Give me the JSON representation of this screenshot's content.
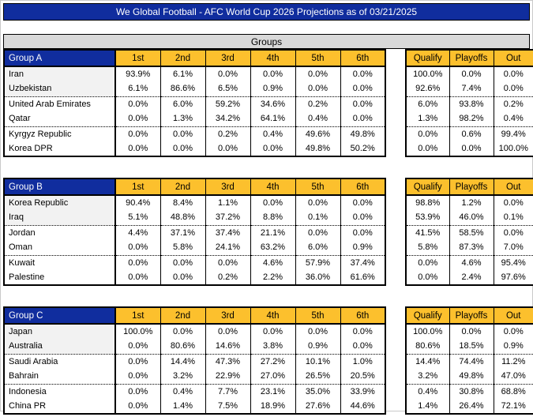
{
  "colors": {
    "header_blue": "#102D9E",
    "header_orange": "#FCC02D",
    "band_gray": "#D9D9D9",
    "qualified_row_tint": "#F2F2F2",
    "title_text": "#FFFFFF"
  },
  "title": "We Global Football - AFC World Cup 2026 Projections as of 03/21/2025",
  "groups_band_label": "Groups",
  "position_headers": [
    "1st",
    "2nd",
    "3rd",
    "4th",
    "5th",
    "6th"
  ],
  "outcome_headers": [
    "Qualify",
    "Playoffs",
    "Out"
  ],
  "groups": [
    {
      "label": "Group A",
      "teams": [
        {
          "name": "Iran",
          "pos": [
            "93.9%",
            "6.1%",
            "0.0%",
            "0.0%",
            "0.0%",
            "0.0%"
          ],
          "outcomes": [
            "100.0%",
            "0.0%",
            "0.0%"
          ]
        },
        {
          "name": "Uzbekistan",
          "pos": [
            "6.1%",
            "86.6%",
            "6.5%",
            "0.9%",
            "0.0%",
            "0.0%"
          ],
          "outcomes": [
            "92.6%",
            "7.4%",
            "0.0%"
          ]
        },
        {
          "name": "United Arab Emirates",
          "pos": [
            "0.0%",
            "6.0%",
            "59.2%",
            "34.6%",
            "0.2%",
            "0.0%"
          ],
          "outcomes": [
            "6.0%",
            "93.8%",
            "0.2%"
          ]
        },
        {
          "name": "Qatar",
          "pos": [
            "0.0%",
            "1.3%",
            "34.2%",
            "64.1%",
            "0.4%",
            "0.0%"
          ],
          "outcomes": [
            "1.3%",
            "98.2%",
            "0.4%"
          ]
        },
        {
          "name": "Kyrgyz Republic",
          "pos": [
            "0.0%",
            "0.0%",
            "0.2%",
            "0.4%",
            "49.6%",
            "49.8%"
          ],
          "outcomes": [
            "0.0%",
            "0.6%",
            "99.4%"
          ]
        },
        {
          "name": "Korea DPR",
          "pos": [
            "0.0%",
            "0.0%",
            "0.0%",
            "0.0%",
            "49.8%",
            "50.2%"
          ],
          "outcomes": [
            "0.0%",
            "0.0%",
            "100.0%"
          ]
        }
      ]
    },
    {
      "label": "Group B",
      "teams": [
        {
          "name": "Korea Republic",
          "pos": [
            "90.4%",
            "8.4%",
            "1.1%",
            "0.0%",
            "0.0%",
            "0.0%"
          ],
          "outcomes": [
            "98.8%",
            "1.2%",
            "0.0%"
          ]
        },
        {
          "name": "Iraq",
          "pos": [
            "5.1%",
            "48.8%",
            "37.2%",
            "8.8%",
            "0.1%",
            "0.0%"
          ],
          "outcomes": [
            "53.9%",
            "46.0%",
            "0.1%"
          ]
        },
        {
          "name": "Jordan",
          "pos": [
            "4.4%",
            "37.1%",
            "37.4%",
            "21.1%",
            "0.0%",
            "0.0%"
          ],
          "outcomes": [
            "41.5%",
            "58.5%",
            "0.0%"
          ]
        },
        {
          "name": "Oman",
          "pos": [
            "0.0%",
            "5.8%",
            "24.1%",
            "63.2%",
            "6.0%",
            "0.9%"
          ],
          "outcomes": [
            "5.8%",
            "87.3%",
            "7.0%"
          ]
        },
        {
          "name": "Kuwait",
          "pos": [
            "0.0%",
            "0.0%",
            "0.0%",
            "4.6%",
            "57.9%",
            "37.4%"
          ],
          "outcomes": [
            "0.0%",
            "4.6%",
            "95.4%"
          ]
        },
        {
          "name": "Palestine",
          "pos": [
            "0.0%",
            "0.0%",
            "0.2%",
            "2.2%",
            "36.0%",
            "61.6%"
          ],
          "outcomes": [
            "0.0%",
            "2.4%",
            "97.6%"
          ]
        }
      ]
    },
    {
      "label": "Group C",
      "teams": [
        {
          "name": "Japan",
          "pos": [
            "100.0%",
            "0.0%",
            "0.0%",
            "0.0%",
            "0.0%",
            "0.0%"
          ],
          "outcomes": [
            "100.0%",
            "0.0%",
            "0.0%"
          ]
        },
        {
          "name": "Australia",
          "pos": [
            "0.0%",
            "80.6%",
            "14.6%",
            "3.8%",
            "0.9%",
            "0.0%"
          ],
          "outcomes": [
            "80.6%",
            "18.5%",
            "0.9%"
          ]
        },
        {
          "name": "Saudi Arabia",
          "pos": [
            "0.0%",
            "14.4%",
            "47.3%",
            "27.2%",
            "10.1%",
            "1.0%"
          ],
          "outcomes": [
            "14.4%",
            "74.4%",
            "11.2%"
          ]
        },
        {
          "name": "Bahrain",
          "pos": [
            "0.0%",
            "3.2%",
            "22.9%",
            "27.0%",
            "26.5%",
            "20.5%"
          ],
          "outcomes": [
            "3.2%",
            "49.8%",
            "47.0%"
          ]
        },
        {
          "name": "Indonesia",
          "pos": [
            "0.0%",
            "0.4%",
            "7.7%",
            "23.1%",
            "35.0%",
            "33.9%"
          ],
          "outcomes": [
            "0.4%",
            "30.8%",
            "68.8%"
          ]
        },
        {
          "name": "China PR",
          "pos": [
            "0.0%",
            "1.4%",
            "7.5%",
            "18.9%",
            "27.6%",
            "44.6%"
          ],
          "outcomes": [
            "1.4%",
            "26.4%",
            "72.1%"
          ]
        }
      ]
    }
  ]
}
